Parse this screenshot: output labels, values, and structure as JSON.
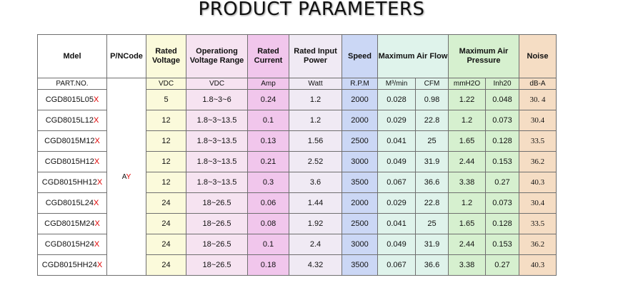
{
  "title": "PRODUCT  PARAMETERS",
  "headers": {
    "model": "Mdel",
    "pncode": "P/NCode",
    "rated_voltage": "Rated Voltage",
    "op_range": "Operationg Voltage Range",
    "rated_current": "Rated Current",
    "input_power": "Rated Input Power",
    "speed": "Speed",
    "airflow": "Maximum Air Flow",
    "pressure": "Maximum Air Pressure",
    "noise": "Noise"
  },
  "units": {
    "part": "PART.NO.",
    "vdc1": "VDC",
    "vdc2": "VDC",
    "amp": "Amp",
    "watt": "Watt",
    "rpm": "R.P.M",
    "m3": "M³/min",
    "cfm": "CFM",
    "mmh2o": "mmH2O",
    "inh2o": "Inh20",
    "dba": "dB-A"
  },
  "pn_code": {
    "a": "A",
    "y": "Y"
  },
  "rows": [
    {
      "model": "CGD8015L05",
      "suffix": "X",
      "volt": "5",
      "range": "1.8~3~6",
      "amp": "0.24",
      "watt": "1.2",
      "rpm": "2000",
      "m3": "0.028",
      "cfm": "0.98",
      "mm": "1.22",
      "inh": "0.048",
      "db": "30. 4"
    },
    {
      "model": "CGD8015L12",
      "suffix": "X",
      "volt": "12",
      "range": "1.8~3~13.5",
      "amp": "0.1",
      "watt": "1.2",
      "rpm": "2000",
      "m3": "0.029",
      "cfm": "22.8",
      "mm": "1.2",
      "inh": "0.073",
      "db": "30.4"
    },
    {
      "model": "CGD8015M12",
      "suffix": "X",
      "volt": "12",
      "range": "1.8~3~13.5",
      "amp": "0.13",
      "watt": "1.56",
      "rpm": "2500",
      "m3": "0.041",
      "cfm": "25",
      "mm": "1.65",
      "inh": "0.128",
      "db": "33.5"
    },
    {
      "model": "CGD8015H12",
      "suffix": "X",
      "volt": "12",
      "range": "1.8~3~13.5",
      "amp": "0.21",
      "watt": "2.52",
      "rpm": "3000",
      "m3": "0.049",
      "cfm": "31.9",
      "mm": "2.44",
      "inh": "0.153",
      "db": "36.2"
    },
    {
      "model": "CGD8015HH12",
      "suffix": "X",
      "volt": "12",
      "range": "1.8~3~13.5",
      "amp": "0.3",
      "watt": "3.6",
      "rpm": "3500",
      "m3": "0.067",
      "cfm": "36.6",
      "mm": "3.38",
      "inh": "0.27",
      "db": "40.3"
    },
    {
      "model": "CGD8015L24",
      "suffix": "X",
      "volt": "24",
      "range": "18~26.5",
      "amp": "0.06",
      "watt": "1.44",
      "rpm": "2000",
      "m3": "0.029",
      "cfm": "22.8",
      "mm": "1.2",
      "inh": "0.073",
      "db": "30.4"
    },
    {
      "model": "CGD8015M24",
      "suffix": "X",
      "volt": "24",
      "range": "18~26.5",
      "amp": "0.08",
      "watt": "1.92",
      "rpm": "2500",
      "m3": "0.041",
      "cfm": "25",
      "mm": "1.65",
      "inh": "0.128",
      "db": "33.5"
    },
    {
      "model": "CGD8015H24",
      "suffix": "X",
      "volt": "24",
      "range": "18~26.5",
      "amp": "0.1",
      "watt": "2.4",
      "rpm": "3000",
      "m3": "0.049",
      "cfm": "31.9",
      "mm": "2.44",
      "inh": "0.153",
      "db": "36.2"
    },
    {
      "model": "CGD8015HH24",
      "suffix": "X",
      "volt": "24",
      "range": "18~26.5",
      "amp": "0.18",
      "watt": "4.32",
      "rpm": "3500",
      "m3": "0.067",
      "cfm": "36.6",
      "mm": "3.38",
      "inh": "0.27",
      "db": "40.3"
    }
  ]
}
